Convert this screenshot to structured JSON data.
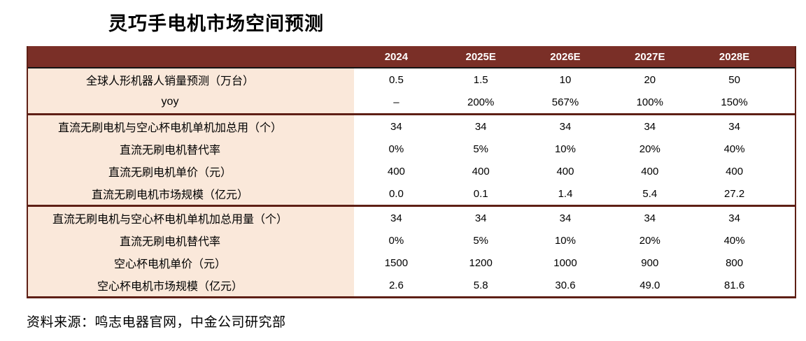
{
  "title": "灵巧手电机市场空间预测",
  "source_note": "资料来源：鸣志电器官网，中金公司研究部",
  "colors": {
    "header_bg": "#7A2F27",
    "header_text": "#FFFFFF",
    "label_bg": "#FAE8DA",
    "divider": "#5E1F15",
    "border": "#5E1F15",
    "header_underline": "#141414",
    "body_text": "#000000",
    "page_bg": "#FFFFFF"
  },
  "chart_data": {
    "type": "table",
    "title": "灵巧手电机市场空间预测",
    "columns": [
      "",
      "2024",
      "2025E",
      "2026E",
      "2027E",
      "2028E"
    ],
    "sections": [
      {
        "rows": [
          {
            "label": "全球人形机器人销量预测（万台）",
            "values": [
              "0.5",
              "1.5",
              "10",
              "20",
              "50"
            ]
          },
          {
            "label": "yoy",
            "values": [
              "–",
              "200%",
              "567%",
              "100%",
              "150%"
            ]
          }
        ]
      },
      {
        "rows": [
          {
            "label": "直流无刷电机与空心杯电机单机加总用（个）",
            "values": [
              "34",
              "34",
              "34",
              "34",
              "34"
            ]
          },
          {
            "label": "直流无刷电机替代率",
            "values": [
              "0%",
              "5%",
              "10%",
              "20%",
              "40%"
            ]
          },
          {
            "label": "直流无刷电机单价（元）",
            "values": [
              "400",
              "400",
              "400",
              "400",
              "400"
            ]
          },
          {
            "label": "直流无刷电机市场规模（亿元）",
            "values": [
              "0.0",
              "0.1",
              "1.4",
              "5.4",
              "27.2"
            ]
          }
        ]
      },
      {
        "rows": [
          {
            "label": "直流无刷电机与空心杯电机单机加总用量（个）",
            "values": [
              "34",
              "34",
              "34",
              "34",
              "34"
            ]
          },
          {
            "label": "直流无刷电机替代率",
            "values": [
              "0%",
              "5%",
              "10%",
              "20%",
              "40%"
            ]
          },
          {
            "label": "空心杯电机单价（元）",
            "values": [
              "1500",
              "1200",
              "1000",
              "900",
              "800"
            ]
          },
          {
            "label": "空心杯电机市场规模（亿元）",
            "values": [
              "2.6",
              "5.8",
              "30.6",
              "49.0",
              "81.6"
            ]
          }
        ]
      }
    ],
    "notes": "数值列居中对齐；表头深红底白字；指标列浅米色底；三个分组之间以深红粗线分隔"
  }
}
